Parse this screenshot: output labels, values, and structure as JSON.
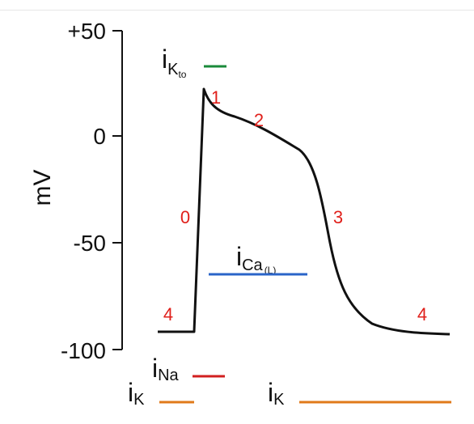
{
  "y_axis": {
    "title": "mV",
    "ticks": [
      "+50",
      "0",
      "-50",
      "-100"
    ]
  },
  "phases": [
    "0",
    "1",
    "2",
    "3",
    "4",
    "4"
  ],
  "currents": {
    "ik_to": {
      "main": "i",
      "sub": "K",
      "subsub": "to",
      "color": "#1a8a3a"
    },
    "ica_l": {
      "main": "i",
      "sub": "Ca",
      "subsub": "(L)",
      "color": "#2a64c8"
    },
    "ina": {
      "main": "i",
      "sub": "Na",
      "color": "#d21f1f"
    },
    "ik_left": {
      "main": "i",
      "sub": "K",
      "color": "#e07a1a"
    },
    "ik_right": {
      "main": "i",
      "sub": "K",
      "color": "#e07a1a"
    }
  },
  "colors": {
    "trace": "#111111",
    "phase_numbers": "#e0201b"
  }
}
